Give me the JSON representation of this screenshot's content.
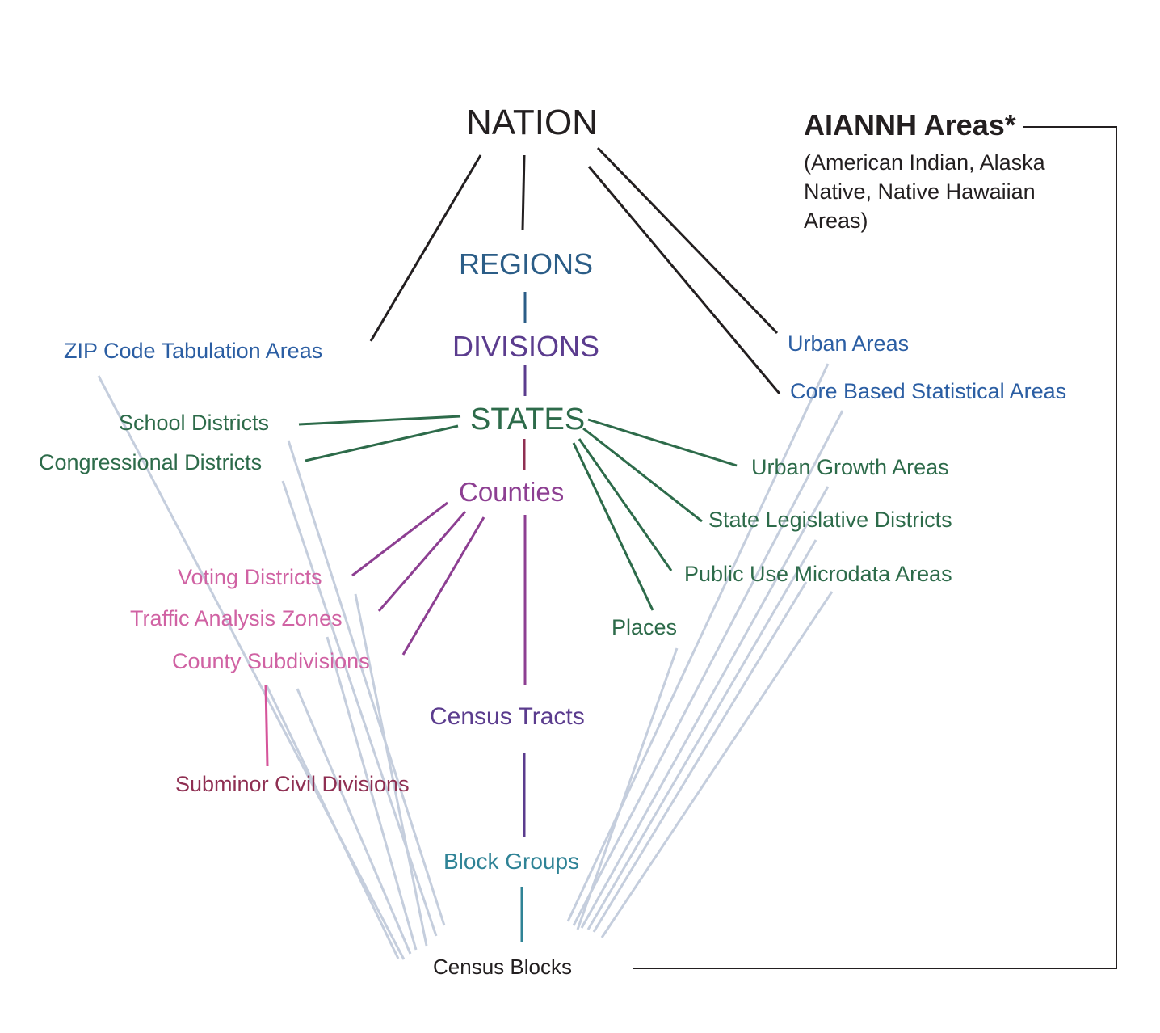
{
  "diagram": {
    "nodes": {
      "nation": "NATION",
      "regions": "REGIONS",
      "divisions": "DIVISIONS",
      "states": "STATES",
      "counties": "Counties",
      "census_tracts": "Census Tracts",
      "block_groups": "Block Groups",
      "census_blocks": "Census Blocks",
      "zcta": "ZIP Code Tabulation Areas",
      "urban_areas": "Urban Areas",
      "cbsa": "Core Based Statistical Areas",
      "school_districts": "School Districts",
      "congressional_districts": "Congressional Districts",
      "urban_growth_areas": "Urban Growth Areas",
      "state_legislative_districts": "State Legislative Districts",
      "puma": "Public Use Microdata Areas",
      "places": "Places",
      "voting_districts": "Voting Districts",
      "traffic_analysis_zones": "Traffic Analysis Zones",
      "county_subdivisions": "County Subdivisions",
      "subminor_civil_divisions": "Subminor Civil Divisions"
    },
    "aiannh": {
      "title": "AIANNH Areas*",
      "subtitle": "(American Indian, Alaska Native, Native Hawaiian Areas)"
    },
    "colors": {
      "black": "#231f20",
      "regions_blue": "#2b5d87",
      "divisions_purple": "#5b3c8e",
      "state_green": "#2d6b4a",
      "county_purple": "#8d3f92",
      "county_pink": "#d062a3",
      "subminor_maroon": "#8f2f52",
      "block_group_teal": "#2f8396",
      "national_blue": "#2b5ea3",
      "block_link_gray": "#c5cedd"
    }
  }
}
